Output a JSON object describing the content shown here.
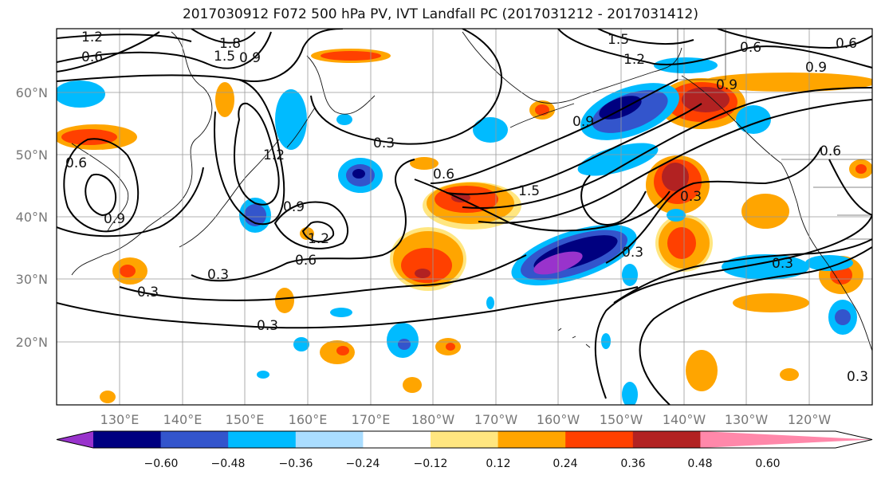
{
  "title": "2017030912 F072 500 hPa PV, IVT Landfall PC (2017031212 - 2017031412)",
  "lat_labels": [
    "20°N",
    "30°N",
    "40°N",
    "50°N",
    "60°N"
  ],
  "lon_labels": [
    "130°E",
    "140°E",
    "150°E",
    "160°E",
    "170°E",
    "180°W",
    "170°W",
    "160°W",
    "150°W",
    "140°W",
    "130°W",
    "120°W"
  ],
  "contour_labels": [
    "1.2",
    "1.8",
    "1.5",
    "0.6",
    "0.9",
    "0.6",
    "1.2",
    "1.5",
    "0.9",
    "0.6",
    "0.9",
    "0.3",
    "0.6",
    "1.2",
    "0.9",
    "1.2",
    "0.9",
    "1.5",
    "0.9",
    "0.3",
    "0.6",
    "0.3",
    "0.3",
    "0.3",
    "0.6",
    "0.3",
    "0.3",
    "0.3",
    "0.6"
  ],
  "colorbar": {
    "colors": [
      "#9933cc",
      "#000080",
      "#3355cc",
      "#00bbff",
      "#aaddff",
      "#ffffff",
      "#ffe680",
      "#ffa500",
      "#ff4000",
      "#b22222",
      "#ff88aa"
    ],
    "tick_labels": [
      "−0.60",
      "−0.48",
      "−0.36",
      "−0.24",
      "−0.12",
      "0.12",
      "0.24",
      "0.36",
      "0.48",
      "0.60"
    ]
  }
}
